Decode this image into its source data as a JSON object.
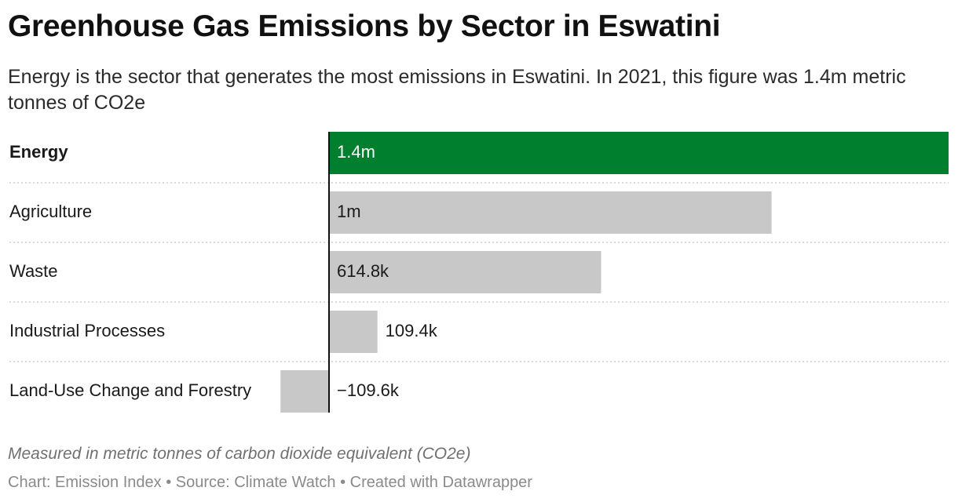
{
  "header": {
    "title": "Greenhouse Gas Emissions by Sector in Eswatini",
    "subtitle": "Energy is the sector that generates the most emissions in Eswatini. In 2021, this figure was 1.4m metric tonnes of CO2e"
  },
  "footer": {
    "note": "Measured in metric tonnes of carbon dioxide equivalent (CO2e)",
    "credits": "Chart: Emission Index • Source: Climate Watch • Created with Datawrapper"
  },
  "colors": {
    "highlight": "#00802f",
    "bar": "#c8c8c8",
    "axis": "#111111",
    "separator": "#cfcfcf",
    "label_on_dark": "#ffffff",
    "label_default": "#1a1a1a"
  },
  "chart_data": {
    "type": "bar",
    "orientation": "horizontal",
    "categories": [
      "Energy",
      "Agriculture",
      "Waste",
      "Industrial Processes",
      "Land-Use Change and Forestry"
    ],
    "values": [
      1400000,
      1000000,
      614800,
      109400,
      -109600
    ],
    "value_labels": [
      "1.4m",
      "1m",
      "614.8k",
      "109.4k",
      "−109.6k"
    ],
    "highlighted": [
      "Energy"
    ],
    "xlim": [
      -109600,
      1400000
    ],
    "grid": false
  }
}
